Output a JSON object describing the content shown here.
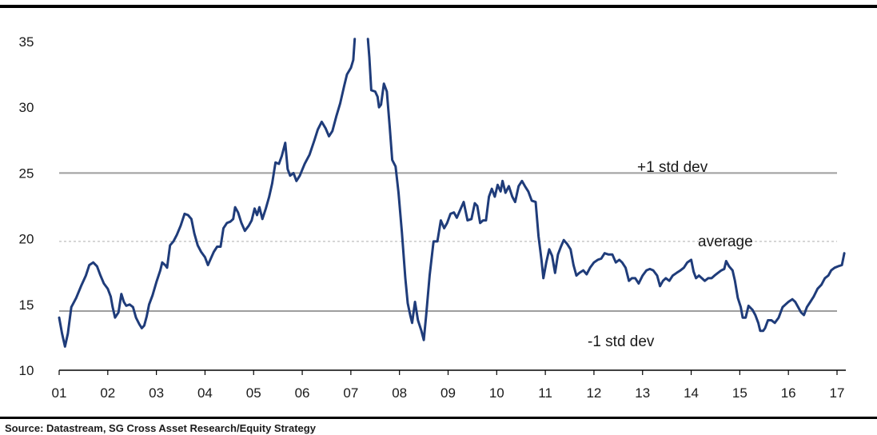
{
  "chart_data": {
    "type": "line",
    "title": "",
    "xlabel": "",
    "ylabel": "",
    "ylim": [
      10,
      35
    ],
    "xlim": [
      2001,
      2017.25
    ],
    "y_ticks": [
      10,
      15,
      20,
      25,
      30,
      35
    ],
    "x_ticks": [
      {
        "value": 2001,
        "label": "01"
      },
      {
        "value": 2002,
        "label": "02"
      },
      {
        "value": 2003,
        "label": "03"
      },
      {
        "value": 2004,
        "label": "04"
      },
      {
        "value": 2005,
        "label": "05"
      },
      {
        "value": 2006,
        "label": "06"
      },
      {
        "value": 2007,
        "label": "07"
      },
      {
        "value": 2008,
        "label": "08"
      },
      {
        "value": 2009,
        "label": "09"
      },
      {
        "value": 2010,
        "label": "10"
      },
      {
        "value": 2011,
        "label": "11"
      },
      {
        "value": 2012,
        "label": "12"
      },
      {
        "value": 2013,
        "label": "13"
      },
      {
        "value": 2014,
        "label": "14"
      },
      {
        "value": 2015,
        "label": "15"
      },
      {
        "value": 2016,
        "label": "16"
      },
      {
        "value": 2017,
        "label": "17"
      }
    ],
    "reference_lines": [
      {
        "label": "+1 std  dev",
        "value": 25.0,
        "style": "solid",
        "color": "#9e9e9e"
      },
      {
        "label": "average",
        "value": 19.8,
        "style": "dashed",
        "color": "#bdbdbd"
      },
      {
        "label": "-1 std dev",
        "value": 14.5,
        "style": "solid",
        "color": "#9e9e9e"
      }
    ],
    "series": [
      {
        "color": "#1f3c7a",
        "segments": [
          [
            [
              2001.0,
              14.0
            ],
            [
              2001.06,
              12.8
            ],
            [
              2001.12,
              11.8
            ],
            [
              2001.18,
              12.8
            ],
            [
              2001.25,
              14.8
            ],
            [
              2001.35,
              15.5
            ],
            [
              2001.45,
              16.4
            ],
            [
              2001.55,
              17.2
            ],
            [
              2001.62,
              18.0
            ],
            [
              2001.7,
              18.2
            ],
            [
              2001.78,
              17.9
            ],
            [
              2001.85,
              17.2
            ],
            [
              2001.92,
              16.6
            ],
            [
              2002.0,
              16.2
            ],
            [
              2002.06,
              15.6
            ],
            [
              2002.1,
              14.8
            ],
            [
              2002.15,
              14.0
            ],
            [
              2002.22,
              14.4
            ],
            [
              2002.28,
              15.8
            ],
            [
              2002.33,
              15.2
            ],
            [
              2002.38,
              14.9
            ],
            [
              2002.45,
              15.0
            ],
            [
              2002.52,
              14.8
            ],
            [
              2002.58,
              14.0
            ],
            [
              2002.65,
              13.5
            ],
            [
              2002.7,
              13.2
            ],
            [
              2002.75,
              13.4
            ],
            [
              2002.8,
              14.1
            ],
            [
              2002.85,
              15.0
            ],
            [
              2002.92,
              15.7
            ],
            [
              2003.0,
              16.7
            ],
            [
              2003.08,
              17.6
            ],
            [
              2003.12,
              18.2
            ],
            [
              2003.18,
              18.0
            ],
            [
              2003.22,
              17.8
            ],
            [
              2003.28,
              19.5
            ],
            [
              2003.35,
              19.8
            ],
            [
              2003.42,
              20.3
            ],
            [
              2003.5,
              21.0
            ],
            [
              2003.58,
              21.9
            ],
            [
              2003.65,
              21.8
            ],
            [
              2003.72,
              21.5
            ],
            [
              2003.78,
              20.4
            ],
            [
              2003.85,
              19.5
            ],
            [
              2003.92,
              19.0
            ],
            [
              2004.0,
              18.6
            ],
            [
              2004.06,
              18.0
            ],
            [
              2004.12,
              18.5
            ],
            [
              2004.18,
              19.0
            ],
            [
              2004.25,
              19.4
            ],
            [
              2004.32,
              19.4
            ],
            [
              2004.38,
              20.8
            ],
            [
              2004.45,
              21.2
            ],
            [
              2004.52,
              21.3
            ],
            [
              2004.58,
              21.5
            ],
            [
              2004.62,
              22.4
            ],
            [
              2004.68,
              22.0
            ],
            [
              2004.75,
              21.2
            ],
            [
              2004.82,
              20.6
            ],
            [
              2004.9,
              21.0
            ],
            [
              2004.96,
              21.4
            ],
            [
              2005.02,
              22.3
            ],
            [
              2005.07,
              21.8
            ],
            [
              2005.12,
              22.4
            ],
            [
              2005.18,
              21.5
            ],
            [
              2005.25,
              22.3
            ],
            [
              2005.32,
              23.2
            ],
            [
              2005.38,
              24.2
            ],
            [
              2005.45,
              25.8
            ],
            [
              2005.52,
              25.7
            ],
            [
              2005.58,
              26.3
            ],
            [
              2005.65,
              27.3
            ],
            [
              2005.7,
              25.3
            ],
            [
              2005.75,
              24.8
            ],
            [
              2005.82,
              25.0
            ],
            [
              2005.88,
              24.4
            ],
            [
              2005.95,
              24.8
            ],
            [
              2006.05,
              25.7
            ],
            [
              2006.15,
              26.4
            ],
            [
              2006.25,
              27.5
            ],
            [
              2006.32,
              28.3
            ],
            [
              2006.4,
              28.9
            ],
            [
              2006.48,
              28.4
            ],
            [
              2006.55,
              27.8
            ],
            [
              2006.62,
              28.2
            ],
            [
              2006.7,
              29.3
            ],
            [
              2006.78,
              30.3
            ],
            [
              2006.86,
              31.6
            ],
            [
              2006.92,
              32.5
            ],
            [
              2007.0,
              33.0
            ],
            [
              2007.05,
              33.6
            ],
            [
              2007.08,
              35.2
            ]
          ],
          [
            [
              2007.35,
              35.2
            ],
            [
              2007.38,
              33.8
            ],
            [
              2007.42,
              31.3
            ],
            [
              2007.5,
              31.2
            ],
            [
              2007.55,
              30.8
            ],
            [
              2007.58,
              30.0
            ],
            [
              2007.62,
              30.2
            ],
            [
              2007.68,
              31.8
            ],
            [
              2007.74,
              31.2
            ],
            [
              2007.8,
              28.5
            ],
            [
              2007.85,
              26.0
            ],
            [
              2007.92,
              25.5
            ],
            [
              2007.98,
              23.5
            ],
            [
              2008.05,
              20.5
            ],
            [
              2008.12,
              17.0
            ],
            [
              2008.17,
              15.1
            ],
            [
              2008.22,
              14.2
            ],
            [
              2008.26,
              13.6
            ],
            [
              2008.32,
              15.2
            ],
            [
              2008.38,
              13.8
            ],
            [
              2008.45,
              13.0
            ],
            [
              2008.5,
              12.3
            ],
            [
              2008.55,
              14.2
            ],
            [
              2008.62,
              17.2
            ],
            [
              2008.7,
              19.8
            ],
            [
              2008.78,
              19.8
            ],
            [
              2008.85,
              21.4
            ],
            [
              2008.92,
              20.8
            ],
            [
              2008.98,
              21.2
            ],
            [
              2009.05,
              21.9
            ],
            [
              2009.12,
              22.0
            ],
            [
              2009.18,
              21.6
            ],
            [
              2009.25,
              22.2
            ],
            [
              2009.32,
              22.8
            ],
            [
              2009.4,
              21.4
            ],
            [
              2009.48,
              21.5
            ],
            [
              2009.55,
              22.7
            ],
            [
              2009.6,
              22.5
            ],
            [
              2009.66,
              21.2
            ],
            [
              2009.72,
              21.4
            ],
            [
              2009.78,
              21.4
            ],
            [
              2009.84,
              23.2
            ],
            [
              2009.9,
              23.8
            ],
            [
              2009.96,
              23.2
            ],
            [
              2010.02,
              24.1
            ],
            [
              2010.08,
              23.6
            ],
            [
              2010.12,
              24.4
            ],
            [
              2010.18,
              23.5
            ],
            [
              2010.25,
              24.0
            ],
            [
              2010.32,
              23.2
            ],
            [
              2010.38,
              22.8
            ],
            [
              2010.45,
              24.0
            ],
            [
              2010.52,
              24.4
            ],
            [
              2010.58,
              24.0
            ],
            [
              2010.65,
              23.6
            ],
            [
              2010.72,
              22.9
            ],
            [
              2010.8,
              22.8
            ],
            [
              2010.86,
              20.2
            ],
            [
              2010.92,
              18.4
            ],
            [
              2010.96,
              17.0
            ],
            [
              2011.02,
              18.2
            ],
            [
              2011.08,
              19.2
            ],
            [
              2011.14,
              18.7
            ],
            [
              2011.2,
              17.4
            ],
            [
              2011.26,
              18.8
            ],
            [
              2011.32,
              19.4
            ],
            [
              2011.38,
              19.9
            ],
            [
              2011.45,
              19.6
            ],
            [
              2011.52,
              19.2
            ],
            [
              2011.58,
              18.0
            ],
            [
              2011.64,
              17.2
            ],
            [
              2011.7,
              17.4
            ],
            [
              2011.78,
              17.6
            ],
            [
              2011.85,
              17.3
            ],
            [
              2011.92,
              17.8
            ],
            [
              2012.0,
              18.2
            ],
            [
              2012.08,
              18.4
            ],
            [
              2012.15,
              18.5
            ],
            [
              2012.22,
              18.9
            ],
            [
              2012.3,
              18.8
            ],
            [
              2012.38,
              18.8
            ],
            [
              2012.45,
              18.2
            ],
            [
              2012.52,
              18.4
            ],
            [
              2012.58,
              18.2
            ],
            [
              2012.65,
              17.8
            ],
            [
              2012.72,
              16.8
            ],
            [
              2012.78,
              17.0
            ],
            [
              2012.85,
              17.0
            ],
            [
              2012.92,
              16.6
            ],
            [
              2013.0,
              17.2
            ],
            [
              2013.08,
              17.6
            ],
            [
              2013.15,
              17.7
            ],
            [
              2013.22,
              17.6
            ],
            [
              2013.3,
              17.2
            ],
            [
              2013.36,
              16.4
            ],
            [
              2013.42,
              16.8
            ],
            [
              2013.48,
              17.0
            ],
            [
              2013.55,
              16.8
            ],
            [
              2013.62,
              17.2
            ],
            [
              2013.7,
              17.4
            ],
            [
              2013.78,
              17.6
            ],
            [
              2013.85,
              17.8
            ],
            [
              2013.92,
              18.2
            ],
            [
              2014.0,
              18.4
            ],
            [
              2014.05,
              17.5
            ],
            [
              2014.1,
              17.0
            ],
            [
              2014.16,
              17.2
            ],
            [
              2014.22,
              17.0
            ],
            [
              2014.28,
              16.8
            ],
            [
              2014.35,
              17.0
            ],
            [
              2014.42,
              17.0
            ],
            [
              2014.48,
              17.2
            ],
            [
              2014.55,
              17.4
            ],
            [
              2014.62,
              17.6
            ],
            [
              2014.68,
              17.7
            ],
            [
              2014.72,
              18.3
            ],
            [
              2014.78,
              17.9
            ],
            [
              2014.85,
              17.6
            ],
            [
              2014.9,
              16.8
            ],
            [
              2014.96,
              15.5
            ],
            [
              2015.02,
              14.8
            ],
            [
              2015.06,
              14.0
            ],
            [
              2015.12,
              14.0
            ],
            [
              2015.18,
              14.9
            ],
            [
              2015.26,
              14.6
            ],
            [
              2015.32,
              14.2
            ],
            [
              2015.38,
              13.6
            ],
            [
              2015.42,
              13.0
            ],
            [
              2015.48,
              13.0
            ],
            [
              2015.52,
              13.2
            ],
            [
              2015.58,
              13.8
            ],
            [
              2015.65,
              13.8
            ],
            [
              2015.72,
              13.6
            ],
            [
              2015.8,
              14.0
            ],
            [
              2015.88,
              14.8
            ],
            [
              2015.94,
              15.0
            ],
            [
              2016.0,
              15.2
            ],
            [
              2016.08,
              15.4
            ],
            [
              2016.14,
              15.2
            ],
            [
              2016.2,
              14.8
            ],
            [
              2016.26,
              14.4
            ],
            [
              2016.32,
              14.2
            ],
            [
              2016.38,
              14.8
            ],
            [
              2016.45,
              15.2
            ],
            [
              2016.52,
              15.6
            ],
            [
              2016.6,
              16.2
            ],
            [
              2016.68,
              16.5
            ],
            [
              2016.75,
              17.0
            ],
            [
              2016.82,
              17.2
            ],
            [
              2016.88,
              17.6
            ],
            [
              2016.95,
              17.8
            ],
            [
              2017.02,
              17.9
            ],
            [
              2017.1,
              18.0
            ],
            [
              2017.15,
              18.9
            ]
          ]
        ]
      }
    ],
    "grid": false,
    "legend": "none"
  },
  "footer": {
    "source_text": "Source: Datastream, SG Cross Asset Research/Equity Strategy"
  },
  "colors": {
    "line": "#1f3c7a",
    "rules": "#000000"
  }
}
